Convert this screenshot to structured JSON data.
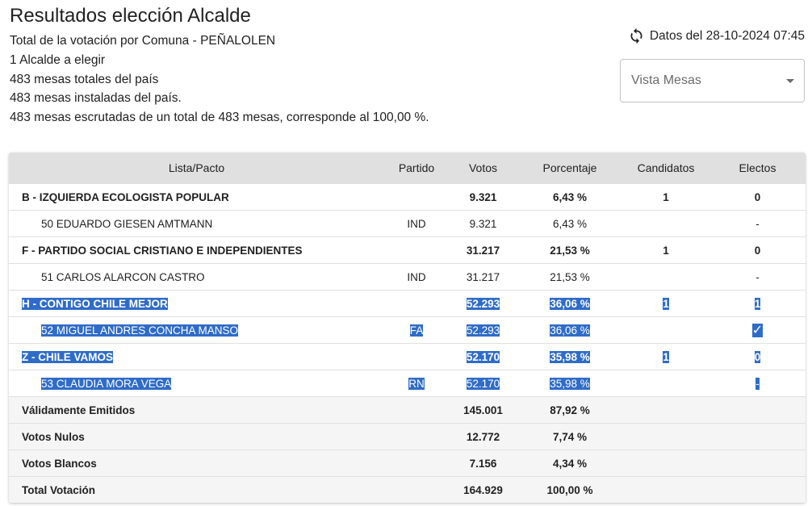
{
  "header": {
    "title": "Resultados elección Alcalde",
    "subtitle": "Total de la votación por Comuna - PEÑALOLEN",
    "info_lines": [
      "1 Alcalde a elegir",
      "483 mesas totales del país",
      "483 mesas instaladas del país.",
      "483 mesas escrutadas de un total de 483 mesas, corresponde al 100,00 %."
    ],
    "date_text": "Datos del 28-10-2024 07:45",
    "select_value": "Vista Mesas"
  },
  "table": {
    "columns": [
      "Lista/Pacto",
      "Partido",
      "Votos",
      "Porcentaje",
      "Candidatos",
      "Electos"
    ],
    "rows": [
      {
        "name": "B - IZQUIERDA ECOLOGISTA POPULAR",
        "partido": "",
        "votos": "9.321",
        "pct": "6,43 %",
        "candidatos": "1",
        "electos": "0"
      },
      {
        "name": "50 EDUARDO GIESEN AMTMANN",
        "partido": "IND",
        "votos": "9.321",
        "pct": "6,43 %",
        "candidatos": "",
        "electos": "-"
      },
      {
        "name": "F - PARTIDO SOCIAL CRISTIANO E INDEPENDIENTES",
        "partido": "",
        "votos": "31.217",
        "pct": "21,53 %",
        "candidatos": "1",
        "electos": "0"
      },
      {
        "name": "51 CARLOS ALARCON CASTRO",
        "partido": "IND",
        "votos": "31.217",
        "pct": "21,53 %",
        "candidatos": "",
        "electos": "-"
      },
      {
        "name": "H - CONTIGO CHILE MEJOR",
        "partido": "",
        "votos": "52.293",
        "pct": "36,06 %",
        "candidatos": "1",
        "electos": "1"
      },
      {
        "name": "52 MIGUEL ANDRES CONCHA MANSO",
        "partido": "FA",
        "votos": "52.293",
        "pct": "36,06 %",
        "candidatos": "",
        "electos": "✓"
      },
      {
        "name": "Z - CHILE VAMOS",
        "partido": "",
        "votos": "52.170",
        "pct": "35,98 %",
        "candidatos": "1",
        "electos": "0"
      },
      {
        "name": "53 CLAUDIA MORA VEGA",
        "partido": "RN",
        "votos": "52.170",
        "pct": "35,98 %",
        "candidatos": "",
        "electos": "-"
      },
      {
        "name": "Válidamente Emitidos",
        "partido": "",
        "votos": "145.001",
        "pct": "87,92 %",
        "candidatos": "",
        "electos": ""
      },
      {
        "name": "Votos Nulos",
        "partido": "",
        "votos": "12.772",
        "pct": "7,74 %",
        "candidatos": "",
        "electos": ""
      },
      {
        "name": "Votos Blancos",
        "partido": "",
        "votos": "7.156",
        "pct": "4,34 %",
        "candidatos": "",
        "electos": ""
      },
      {
        "name": "Total Votación",
        "partido": "",
        "votos": "164.929",
        "pct": "100,00 %",
        "candidatos": "",
        "electos": ""
      }
    ]
  },
  "colors": {
    "selection": "#2f6cc8",
    "header_bg": "#e0e0e0",
    "total_bg": "#f5f5f5"
  },
  "icons": {
    "refresh": "refresh-icon",
    "dropdown": "caret-down-icon"
  }
}
